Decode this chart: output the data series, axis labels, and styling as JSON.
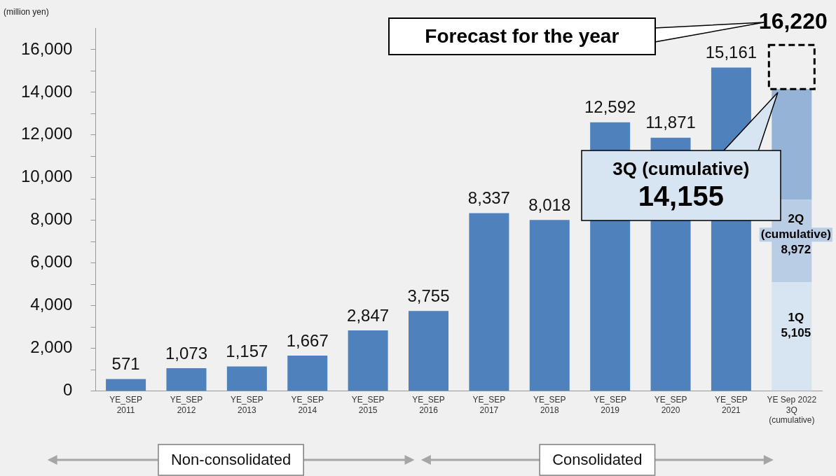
{
  "chart_data": {
    "type": "bar",
    "stacked": true,
    "ylabel": "(million yen)",
    "categories": [
      "YE_SEP\n2011",
      "YE_SEP\n2012",
      "YE_SEP\n2013",
      "YE_SEP\n2014",
      "YE_SEP\n2015",
      "YE_SEP\n2016",
      "YE_SEP\n2017",
      "YE_SEP\n2018",
      "YE_SEP\n2019",
      "YE_SEP\n2020",
      "YE_SEP\n2021",
      "YE Sep 2022\n3Q\n(cumulative)"
    ],
    "series": [
      {
        "color": "#4f81bd",
        "values": [
          571,
          1073,
          1157,
          1667,
          2847,
          3755,
          8337,
          8018,
          12592,
          11871,
          15161,
          null
        ],
        "value_labels": [
          "571",
          "1,073",
          "1,157",
          "1,667",
          "2,847",
          "3,755",
          "8,337",
          "8,018",
          "12,592",
          "11,871",
          "15,161",
          null
        ]
      },
      {
        "color": "#d7e4f1",
        "values": [
          null,
          null,
          null,
          null,
          null,
          null,
          null,
          null,
          null,
          null,
          null,
          5105
        ]
      },
      {
        "color": "#b9cde5",
        "values": [
          null,
          null,
          null,
          null,
          null,
          null,
          null,
          null,
          null,
          null,
          null,
          3867
        ]
      },
      {
        "color": "#95b3d7",
        "values": [
          null,
          null,
          null,
          null,
          null,
          null,
          null,
          null,
          null,
          null,
          null,
          5183
        ]
      },
      {
        "color": "#000000",
        "line_style": "dashed",
        "values": [
          null,
          null,
          null,
          null,
          null,
          null,
          null,
          null,
          null,
          null,
          null,
          2065
        ]
      }
    ],
    "ylim": [
      0,
      17000
    ],
    "yticks": [
      0,
      {
        "value": 1000,
        "label": null
      },
      {
        "value": 2000,
        "label": "2,000"
      },
      {
        "value": 3000,
        "label": null
      },
      {
        "value": 4000,
        "label": "4,000"
      },
      {
        "value": 5000,
        "label": null
      },
      {
        "value": 6000,
        "label": "6,000"
      },
      {
        "value": 7000,
        "label": null
      },
      {
        "value": 8000,
        "label": "8,000"
      },
      {
        "value": 9000,
        "label": null
      },
      {
        "value": 10000,
        "label": "10,000"
      },
      {
        "value": 11000,
        "label": null
      },
      {
        "value": 12000,
        "label": "12,000"
      },
      {
        "value": 13000,
        "label": null
      },
      {
        "value": 14000,
        "label": "14,000"
      },
      {
        "value": 15000,
        "label": null
      },
      {
        "value": 16000,
        "label": "16,000"
      }
    ],
    "grid": false,
    "legend": false,
    "annotations": [
      "Forecast for the year",
      "16,220",
      {
        "text": "3Q (cumulative)\n14,155",
        "x": "YE Sep 2022\n3Q\n(cumulative)",
        "y": 14155
      },
      {
        "text": "2Q\n(cumulative)\n8,972",
        "x": "YE Sep 2022\n3Q\n(cumulative)",
        "y": 8972
      },
      {
        "text": "1Q\n5,105",
        "x": "YE Sep 2022\n3Q\n(cumulative)",
        "y": 5105
      },
      "Non-consolidated",
      "Consolidated"
    ]
  }
}
